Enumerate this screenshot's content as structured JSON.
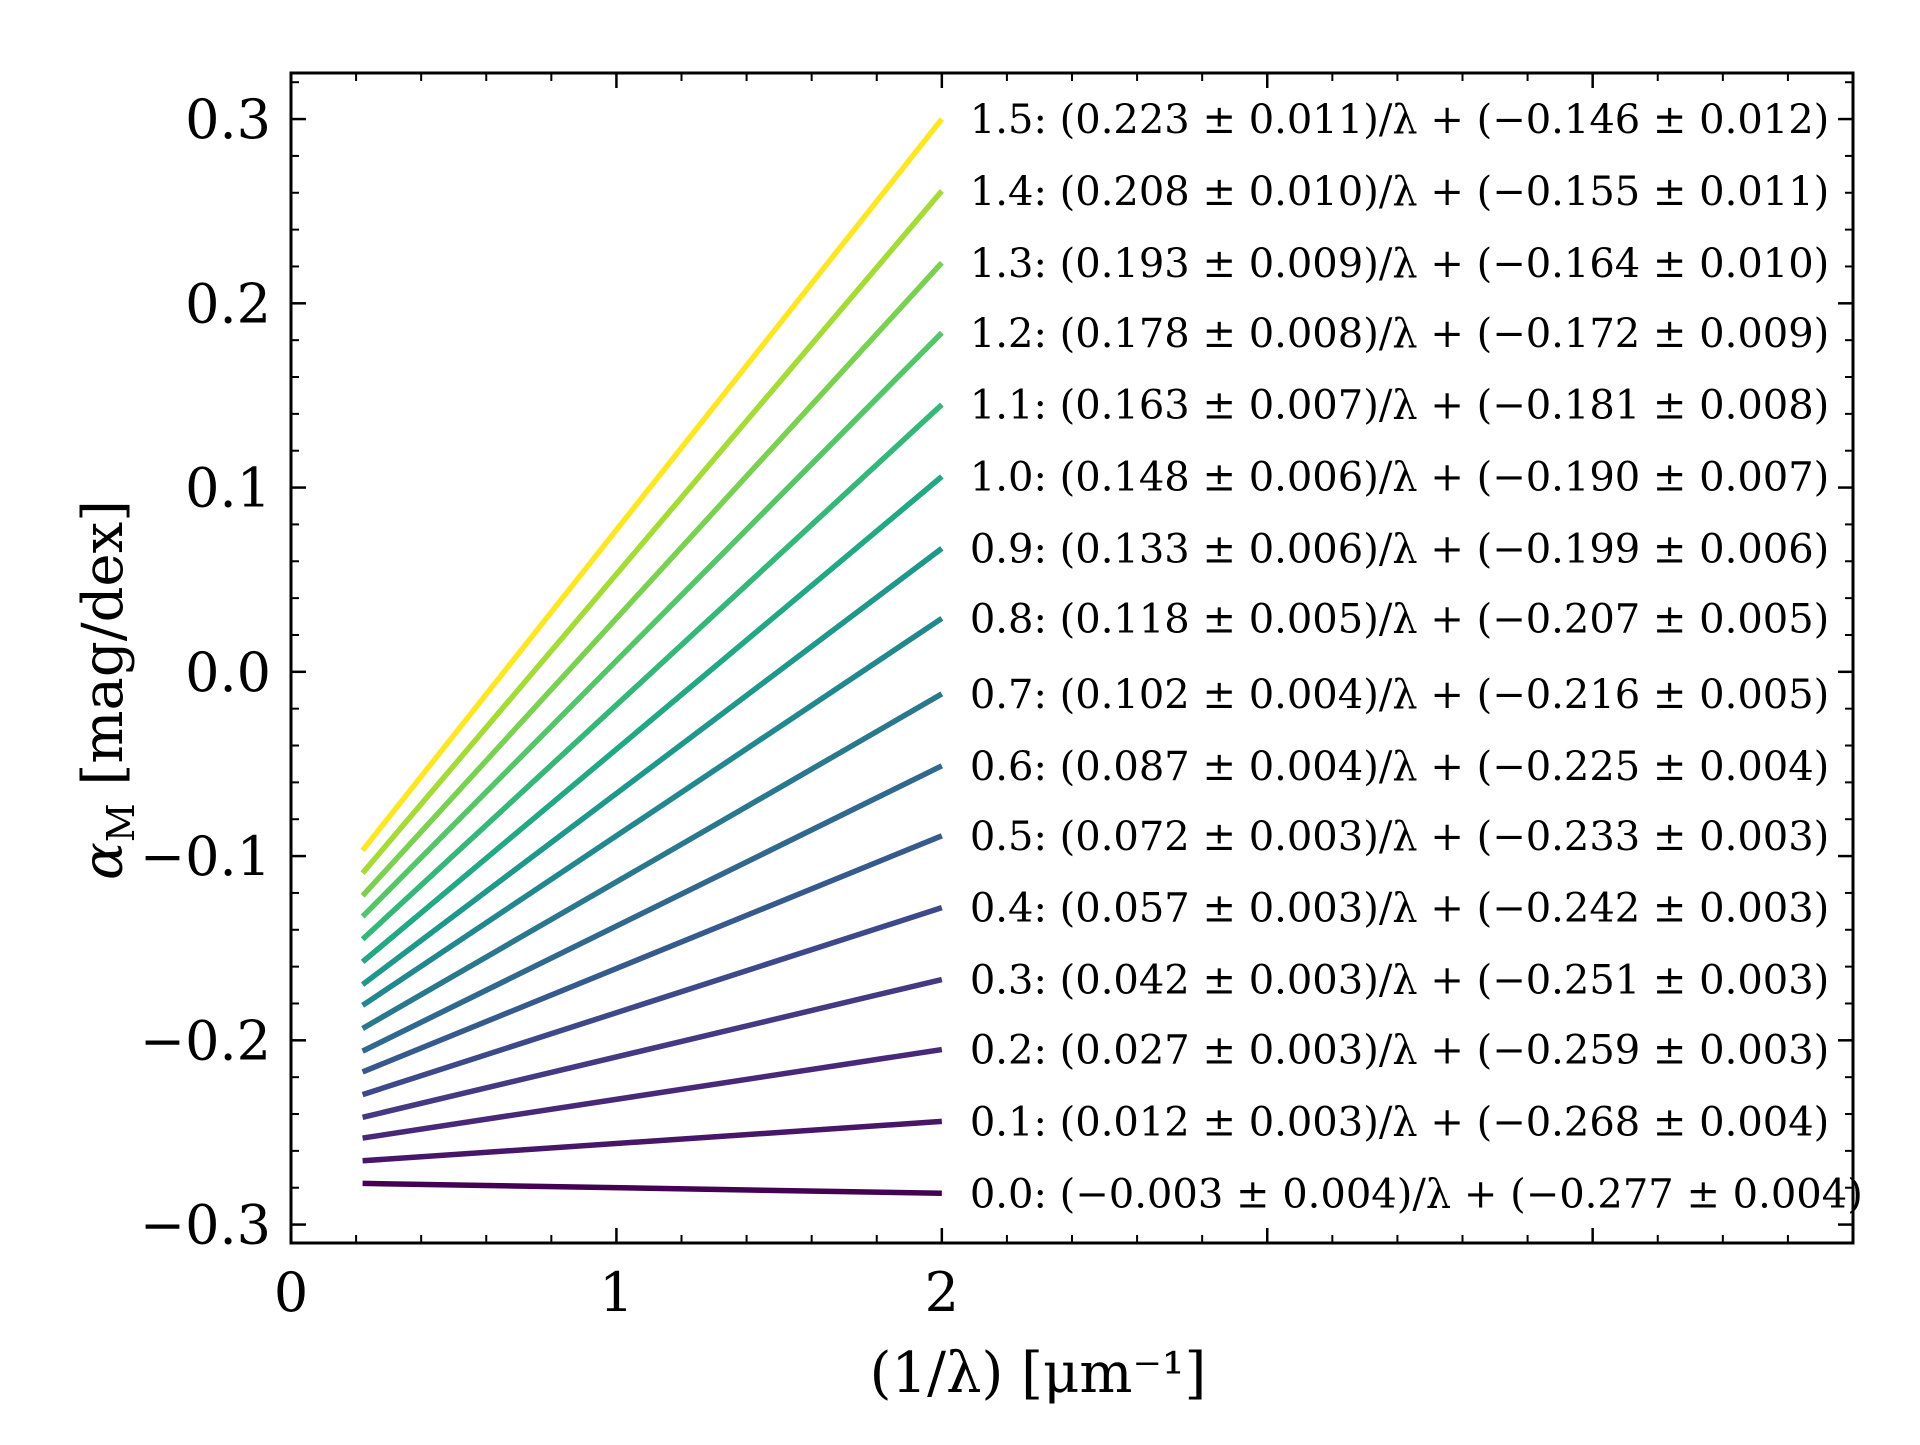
{
  "chart_data": {
    "type": "line",
    "title": "",
    "xlabel": "(1/λ) [μm⁻¹]",
    "ylabel": "α_M [mag/dex]",
    "ylabel_symbol": "α",
    "ylabel_subscript": "M",
    "ylabel_units": " [mag/dex]",
    "xlim": [
      0,
      4.8
    ],
    "ylim": [
      -0.31,
      0.325
    ],
    "x_ticks": [
      {
        "value": 0,
        "label": "0"
      },
      {
        "value": 1,
        "label": "1"
      },
      {
        "value": 2,
        "label": "2"
      }
    ],
    "y_ticks": [
      {
        "value": -0.3,
        "label": "−0.3"
      },
      {
        "value": -0.2,
        "label": "−0.2"
      },
      {
        "value": -0.1,
        "label": "−0.1"
      },
      {
        "value": 0.0,
        "label": "0.0"
      },
      {
        "value": 0.1,
        "label": "0.1"
      },
      {
        "value": 0.2,
        "label": "0.2"
      },
      {
        "value": 0.3,
        "label": "0.3"
      }
    ],
    "grid": false,
    "x_range_of_lines": [
      0.22,
      2.0
    ],
    "series": [
      {
        "name": "0.0",
        "slope": -0.003,
        "intercept": -0.277,
        "color": "#440154",
        "label": "0.0:  (−0.003 ± 0.004)/λ + (−0.277 ± 0.004)"
      },
      {
        "name": "0.1",
        "slope": 0.012,
        "intercept": -0.268,
        "color": "#481668",
        "label": "0.1:  (0.012 ± 0.003)/λ + (−0.268 ± 0.004)"
      },
      {
        "name": "0.2",
        "slope": 0.027,
        "intercept": -0.259,
        "color": "#482878",
        "label": "0.2:  (0.027 ± 0.003)/λ + (−0.259 ± 0.003)"
      },
      {
        "name": "0.3",
        "slope": 0.042,
        "intercept": -0.251,
        "color": "#443983",
        "label": "0.3:  (0.042 ± 0.003)/λ + (−0.251 ± 0.003)"
      },
      {
        "name": "0.4",
        "slope": 0.057,
        "intercept": -0.242,
        "color": "#3e4989",
        "label": "0.4:  (0.057 ± 0.003)/λ + (−0.242 ± 0.003)"
      },
      {
        "name": "0.5",
        "slope": 0.072,
        "intercept": -0.233,
        "color": "#375a8c",
        "label": "0.5:  (0.072 ± 0.003)/λ + (−0.233 ± 0.003)"
      },
      {
        "name": "0.6",
        "slope": 0.087,
        "intercept": -0.225,
        "color": "#31688e",
        "label": "0.6:  (0.087 ± 0.004)/λ + (−0.225 ± 0.004)"
      },
      {
        "name": "0.7",
        "slope": 0.102,
        "intercept": -0.216,
        "color": "#2a788e",
        "label": "0.7:  (0.102 ± 0.004)/λ + (−0.216 ± 0.005)"
      },
      {
        "name": "0.8",
        "slope": 0.118,
        "intercept": -0.207,
        "color": "#23888e",
        "label": "0.8:  (0.118 ± 0.005)/λ + (−0.207 ± 0.005)"
      },
      {
        "name": "0.9",
        "slope": 0.133,
        "intercept": -0.199,
        "color": "#1f988b",
        "label": "0.9:  (0.133 ± 0.006)/λ + (−0.199 ± 0.006)"
      },
      {
        "name": "1.0",
        "slope": 0.148,
        "intercept": -0.19,
        "color": "#22a884",
        "label": "1.0:  (0.148 ± 0.006)/λ + (−0.190 ± 0.007)"
      },
      {
        "name": "1.1",
        "slope": 0.163,
        "intercept": -0.181,
        "color": "#35b779",
        "label": "1.1:  (0.163 ± 0.007)/λ + (−0.181 ± 0.008)"
      },
      {
        "name": "1.2",
        "slope": 0.178,
        "intercept": -0.172,
        "color": "#54c568",
        "label": "1.2:  (0.178 ± 0.008)/λ + (−0.172 ± 0.009)"
      },
      {
        "name": "1.3",
        "slope": 0.193,
        "intercept": -0.164,
        "color": "#7ad151",
        "label": "1.3:  (0.193 ± 0.009)/λ + (−0.164 ± 0.010)"
      },
      {
        "name": "1.4",
        "slope": 0.208,
        "intercept": -0.155,
        "color": "#a5db36",
        "label": "1.4:  (0.208 ± 0.010)/λ + (−0.155 ± 0.011)"
      },
      {
        "name": "1.5",
        "slope": 0.223,
        "intercept": -0.146,
        "color": "#fde725",
        "label": "1.5:  (0.223 ± 0.011)/λ + (−0.146 ± 0.012)"
      }
    ]
  }
}
